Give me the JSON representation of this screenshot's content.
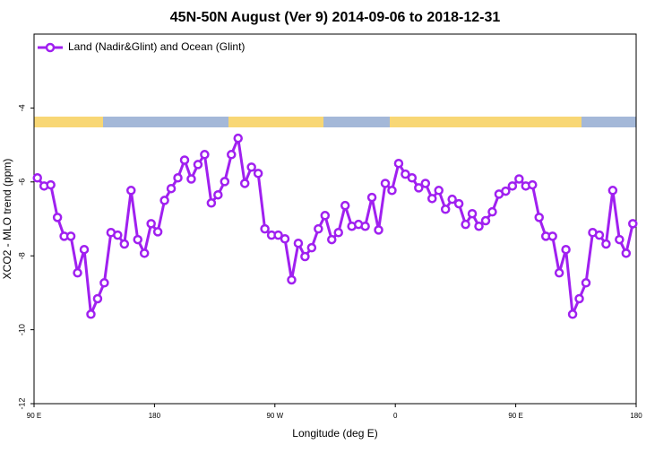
{
  "chart_data": {
    "type": "line",
    "title": "45N-50N August (Ver 9)   2014-09-06 to 2018-12-31",
    "x_label": "Longitude (deg E)",
    "y_label": "XCO2 - MLO trend (ppm)",
    "xlim": [
      90,
      540
    ],
    "ylim": [
      -12,
      -2
    ],
    "xticks": [
      {
        "value": 90,
        "label": "90 E"
      },
      180,
      {
        "value": 270,
        "label": "90 W"
      },
      {
        "value": 360,
        "label": "0"
      },
      {
        "value": 450,
        "label": "90 E"
      },
      {
        "value": 540,
        "label": "180"
      }
    ],
    "yticks": [
      -12,
      -10,
      -8,
      -6,
      -4
    ],
    "legend": "top-left",
    "x": [
      92.5,
      97.5,
      102.5,
      107.5,
      112.5,
      117.5,
      122.5,
      127.5,
      132.5,
      137.5,
      142.5,
      147.5,
      152.5,
      157.5,
      162.5,
      167.5,
      172.5,
      177.5,
      182.5,
      187.5,
      192.5,
      197.5,
      202.5,
      207.5,
      212.5,
      217.5,
      222.5,
      227.5,
      232.5,
      237.5,
      242.5,
      247.5,
      252.5,
      257.5,
      262.5,
      267.5,
      272.5,
      277.5,
      282.5,
      287.5,
      292.5,
      297.5,
      302.5,
      307.5,
      312.5,
      317.5,
      322.5,
      327.5,
      332.5,
      337.5,
      342.5,
      347.5,
      352.5,
      357.5,
      362.5,
      367.5,
      372.5,
      377.5,
      382.5,
      387.5,
      392.5,
      397.5,
      402.5,
      407.5,
      412.5,
      417.5,
      422.5,
      427.5,
      432.5,
      437.5,
      442.5,
      447.5,
      452.5,
      457.5,
      462.5,
      467.5,
      472.5,
      477.5,
      482.5,
      487.5,
      492.5,
      497.5,
      502.5,
      507.5,
      512.5,
      517.5,
      522.5,
      527.5,
      532.5,
      537.5
    ],
    "series": [
      {
        "name": "Land (Nadir&Glint) and Ocean (Glint)",
        "color": "#a020f0",
        "values": [
          -5.89,
          -6.11,
          -6.08,
          -6.96,
          -7.47,
          -7.47,
          -8.46,
          -7.83,
          -9.58,
          -9.16,
          -8.73,
          -7.37,
          -7.44,
          -7.68,
          -6.23,
          -7.56,
          -7.93,
          -7.13,
          -7.35,
          -6.5,
          -6.18,
          -5.89,
          -5.41,
          -5.92,
          -5.53,
          -5.26,
          -6.57,
          -6.35,
          -5.99,
          -5.26,
          -4.82,
          -6.04,
          -5.6,
          -5.77,
          -7.27,
          -7.44,
          -7.44,
          -7.54,
          -8.65,
          -7.66,
          -8.02,
          -7.78,
          -7.27,
          -6.91,
          -7.56,
          -7.37,
          -6.64,
          -7.2,
          -7.15,
          -7.2,
          -6.42,
          -7.3,
          -6.04,
          -6.23,
          -5.5,
          -5.79,
          -5.89,
          -6.16,
          -6.04,
          -6.45,
          -6.23,
          -6.74,
          -6.47,
          -6.59,
          -7.15,
          -6.86,
          -7.2,
          -7.05,
          -6.81,
          -6.33,
          -6.25,
          -6.11,
          -5.92,
          -6.11,
          -6.08,
          -6.96,
          -7.47,
          -7.47,
          -8.46,
          -7.83,
          -9.58,
          -9.16,
          -8.73,
          -7.37,
          -7.44,
          -7.68,
          -6.23,
          -7.56,
          -7.93,
          -7.13
        ]
      }
    ]
  }
}
